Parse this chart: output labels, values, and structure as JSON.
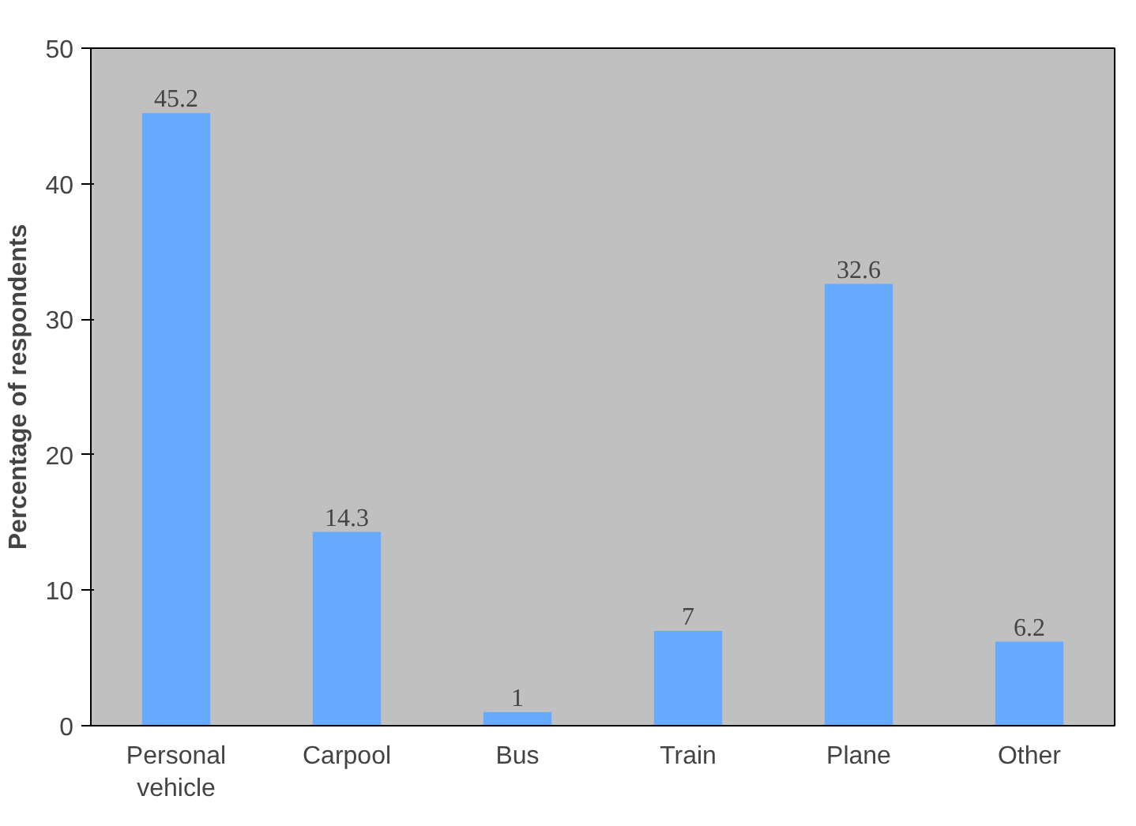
{
  "chart_data": {
    "type": "bar",
    "ylabel": "Percentage of respondents",
    "categories": [
      "Personal\nvehicle",
      "Carpool",
      "Bus",
      "Train",
      "Plane",
      "Other"
    ],
    "values": [
      45.2,
      14.3,
      1,
      7,
      32.6,
      6.2
    ],
    "color": "#66aaff",
    "ylim": [
      0,
      50
    ],
    "yticks": [
      0,
      10,
      20,
      30,
      40,
      50
    ],
    "grid": false,
    "data_labels": true
  }
}
